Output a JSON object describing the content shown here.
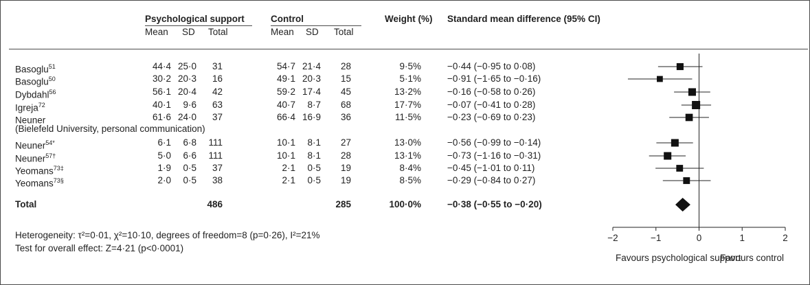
{
  "headers": {
    "group1": "Psychological support",
    "group2": "Control",
    "weight": "Weight (%)",
    "smd": "Standard mean difference (95% CI)",
    "mean": "Mean",
    "sd": "SD",
    "total": "Total"
  },
  "rows": [
    {
      "study": "Basoglu",
      "sup": "51",
      "m1": "44·4",
      "sd1": "25·0",
      "n1": "31",
      "m2": "54·7",
      "sd2": "21·4",
      "n2": "28",
      "w": "9·5%",
      "ci": "−0·44 (−0·95 to 0·08)"
    },
    {
      "study": "Basoglu",
      "sup": "50",
      "m1": "30·2",
      "sd1": "20·3",
      "n1": "16",
      "m2": "49·1",
      "sd2": "20·3",
      "n2": "15",
      "w": "5·1%",
      "ci": "−0·91 (−1·65 to −0·16)"
    },
    {
      "study": "Dybdahl",
      "sup": "56",
      "m1": "56·1",
      "sd1": "20·4",
      "n1": "42",
      "m2": "59·2",
      "sd2": "17·4",
      "n2": "45",
      "w": "13·2%",
      "ci": "−0·16 (−0·58 to 0·26)"
    },
    {
      "study": "Igreja",
      "sup": "72",
      "m1": "40·1",
      "sd1": "9·6",
      "n1": "63",
      "m2": "40·7",
      "sd2": "8·7",
      "n2": "68",
      "w": "17·7%",
      "ci": "−0·07 (−0·41 to 0·28)"
    },
    {
      "study": "Neuner",
      "sup": "",
      "m1": "61·6",
      "sd1": "24·0",
      "n1": "37",
      "m2": "66·4",
      "sd2": "16·9",
      "n2": "36",
      "w": "11·5%",
      "ci": "−0·23 (−0·69 to 0·23)",
      "note": "(Bielefeld University, personal communication)"
    },
    {
      "study": "Neuner",
      "sup": "54*",
      "m1": "6·1",
      "sd1": "6·8",
      "n1": "111",
      "m2": "10·1",
      "sd2": "8·1",
      "n2": "27",
      "w": "13·0%",
      "ci": "−0·56 (−0·99 to −0·14)"
    },
    {
      "study": "Neuner",
      "sup": "57†",
      "m1": "5·0",
      "sd1": "6·6",
      "n1": "111",
      "m2": "10·1",
      "sd2": "8·1",
      "n2": "28",
      "w": "13·1%",
      "ci": "−0·73 (−1·16 to −0·31)"
    },
    {
      "study": "Yeomans",
      "sup": "73‡",
      "m1": "1·9",
      "sd1": "0·5",
      "n1": "37",
      "m2": "2·1",
      "sd2": "0·5",
      "n2": "19",
      "w": "8·4%",
      "ci": "−0·45 (−1·01 to 0·11)"
    },
    {
      "study": "Yeomans",
      "sup": "73§",
      "m1": "2·0",
      "sd1": "0·5",
      "n1": "38",
      "m2": "2·1",
      "sd2": "0·5",
      "n2": "19",
      "w": "8·5%",
      "ci": "−0·29 (−0·84 to 0·27)"
    }
  ],
  "total": {
    "label": "Total",
    "n1": "486",
    "n2": "285",
    "w": "100·0%",
    "ci": "−0·38 (−0·55 to −0·20)"
  },
  "footer": {
    "heterogeneity": "Heterogeneity: τ²=0·01, χ²=10·10, degrees of freedom=8 (p=0·26), I²=21%",
    "overall": "Test for overall effect: Z=4·21 (p<0·0001)"
  },
  "axis": {
    "ticks": [
      "−2",
      "−1",
      "0",
      "1",
      "2"
    ],
    "left_label": "Favours psychological support",
    "right_label": "Favours control"
  },
  "chart_data": {
    "type": "forest",
    "studies": [
      "Basoglu51",
      "Basoglu50",
      "Dybdahl56",
      "Igreja72",
      "Neuner",
      "Neuner54*",
      "Neuner57†",
      "Yeomans73‡",
      "Yeomans73§"
    ],
    "smd": [
      -0.44,
      -0.91,
      -0.16,
      -0.07,
      -0.23,
      -0.56,
      -0.73,
      -0.45,
      -0.29
    ],
    "ci_low": [
      -0.95,
      -1.65,
      -0.58,
      -0.41,
      -0.69,
      -0.99,
      -1.16,
      -1.01,
      -0.84
    ],
    "ci_high": [
      0.08,
      -0.16,
      0.26,
      0.28,
      0.23,
      -0.14,
      -0.31,
      0.11,
      0.27
    ],
    "weights": [
      9.5,
      5.1,
      13.2,
      17.7,
      11.5,
      13.0,
      13.1,
      8.4,
      8.5
    ],
    "pooled": {
      "smd": -0.38,
      "ci_low": -0.55,
      "ci_high": -0.2
    },
    "xlim": [
      -2,
      2
    ],
    "xticks": [
      -2,
      -1,
      0,
      1,
      2
    ],
    "reference_line": 0,
    "marker_color": "#111111",
    "line_color": "#222222"
  }
}
